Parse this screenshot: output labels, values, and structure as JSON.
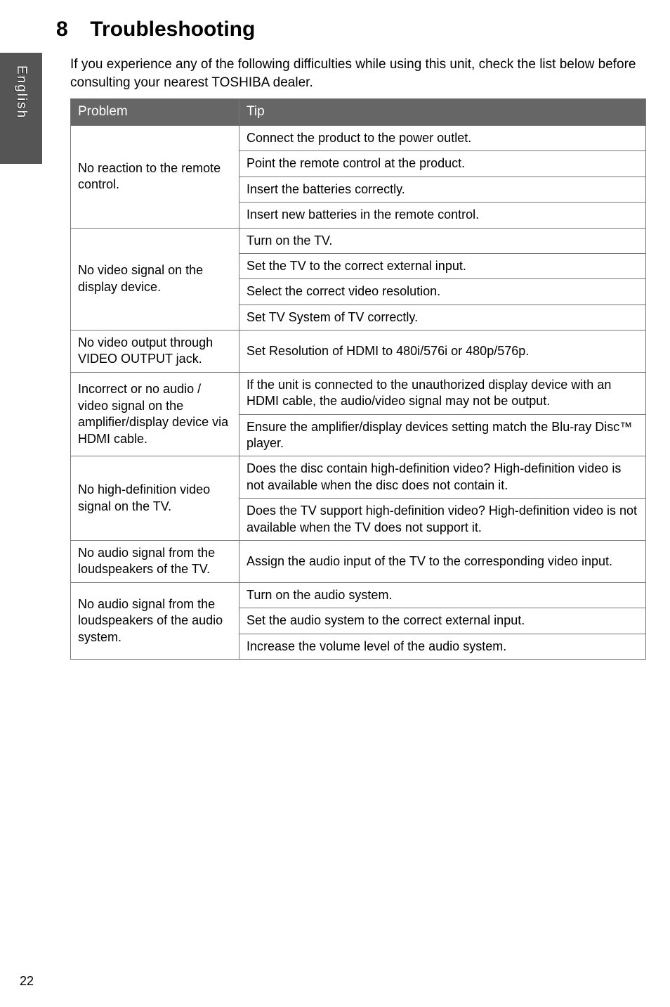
{
  "sidetab": {
    "label": "English"
  },
  "heading": {
    "number": "8",
    "title": "Troubleshooting"
  },
  "intro": "If you experience any of the following difficulties while using this unit, check the list below before consulting your nearest TOSHIBA dealer.",
  "table": {
    "headers": {
      "problem": "Problem",
      "tip": "Tip"
    },
    "groups": [
      {
        "problem": "No reaction to the remote control.",
        "tips": [
          "Connect the product to the power outlet.",
          "Point the remote control at the product.",
          "Insert the batteries correctly.",
          "Insert new batteries in the remote control."
        ]
      },
      {
        "problem": "No video signal on the display device.",
        "tips": [
          "Turn on the TV.",
          "Set the TV to the correct external input.",
          "Select the correct video resolution.",
          "Set TV System of TV correctly."
        ]
      },
      {
        "problem": "No video output through VIDEO OUTPUT jack.",
        "tips": [
          "Set Resolution of HDMI to 480i/576i or 480p/576p."
        ]
      },
      {
        "problem": "Incorrect or no audio / video signal on the amplifier/display device via HDMI cable.",
        "tips": [
          "If the unit is connected to the unauthorized display device with an HDMI cable, the audio/video signal may not be output.",
          "Ensure the amplifier/display devices setting match the Blu-ray Disc™ player."
        ]
      },
      {
        "problem": "No high-definition video signal on the TV.",
        "tips": [
          "Does the disc contain high-definition video? High-definition video is not available when the disc does not contain it.",
          "Does the TV support high-definition video? High-definition video is not available when the TV does not support it."
        ]
      },
      {
        "problem": "No audio signal from the loudspeakers of the  TV.",
        "tips": [
          "Assign the audio input of the TV to the corresponding video input."
        ]
      },
      {
        "problem": "No audio signal from the loudspeakers of the audio system.",
        "tips": [
          "Turn on the audio system.",
          "Set the audio system to the correct external input.",
          "Increase the volume level of the audio system."
        ]
      }
    ]
  },
  "pageNumber": "22"
}
